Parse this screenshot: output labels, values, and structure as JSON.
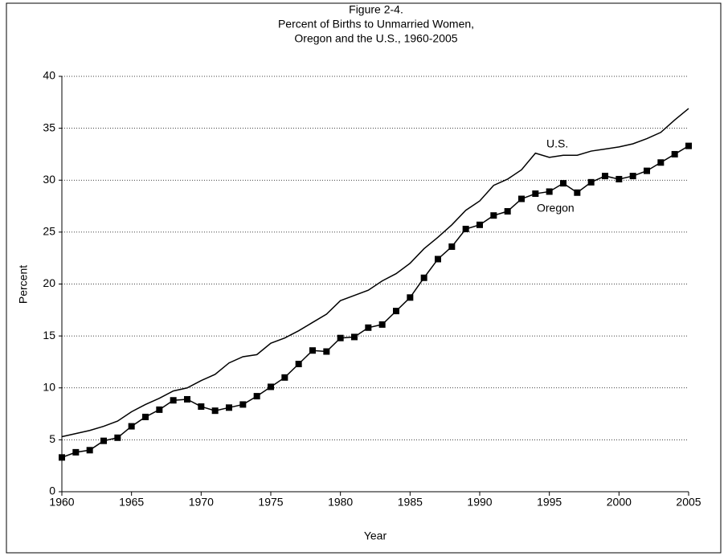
{
  "chart_data": {
    "type": "line",
    "title": [
      "Figure 2-4.",
      "Percent of Births to Unmarried Women,",
      "Oregon and the U.S., 1960-2005"
    ],
    "x_label": "Year",
    "y_label": "Percent",
    "x": [
      1960,
      1961,
      1962,
      1963,
      1964,
      1965,
      1966,
      1967,
      1968,
      1969,
      1970,
      1971,
      1972,
      1973,
      1974,
      1975,
      1976,
      1977,
      1978,
      1979,
      1980,
      1981,
      1982,
      1983,
      1984,
      1985,
      1986,
      1987,
      1988,
      1989,
      1990,
      1991,
      1992,
      1993,
      1994,
      1995,
      1996,
      1997,
      1998,
      1999,
      2000,
      2001,
      2002,
      2003,
      2004,
      2005
    ],
    "series": [
      {
        "name": "U.S.",
        "color": "#000000",
        "marker": "none",
        "values": [
          5.3,
          5.6,
          5.9,
          6.3,
          6.8,
          7.7,
          8.4,
          9.0,
          9.7,
          10.0,
          10.7,
          11.3,
          12.4,
          13.0,
          13.2,
          14.3,
          14.8,
          15.5,
          16.3,
          17.1,
          18.4,
          18.9,
          19.4,
          20.3,
          21.0,
          22.0,
          23.4,
          24.5,
          25.7,
          27.1,
          28.0,
          29.5,
          30.1,
          31.0,
          32.6,
          32.2,
          32.4,
          32.4,
          32.8,
          33.0,
          33.2,
          33.5,
          34.0,
          34.6,
          35.8,
          36.9
        ]
      },
      {
        "name": "Oregon",
        "color": "#000000",
        "marker": "square",
        "values": [
          3.3,
          3.8,
          4.0,
          4.9,
          5.2,
          6.3,
          7.2,
          7.9,
          8.8,
          8.9,
          8.2,
          7.8,
          8.1,
          8.4,
          9.2,
          10.1,
          11.0,
          12.3,
          13.6,
          13.5,
          14.8,
          14.9,
          15.8,
          16.1,
          17.4,
          18.7,
          20.6,
          22.4,
          23.6,
          25.3,
          25.7,
          26.6,
          27.0,
          28.2,
          28.7,
          28.9,
          29.7,
          28.8,
          29.8,
          30.4,
          30.1,
          30.4,
          30.9,
          31.7,
          32.5,
          33.3
        ]
      }
    ],
    "xlim": [
      1960,
      2005
    ],
    "xticks": [
      1960,
      1965,
      1970,
      1975,
      1980,
      1985,
      1990,
      1995,
      2000,
      2005
    ],
    "ylim": [
      0,
      40
    ],
    "yticks": [
      0,
      5,
      10,
      15,
      20,
      25,
      30,
      35,
      40
    ],
    "grid": true
  }
}
